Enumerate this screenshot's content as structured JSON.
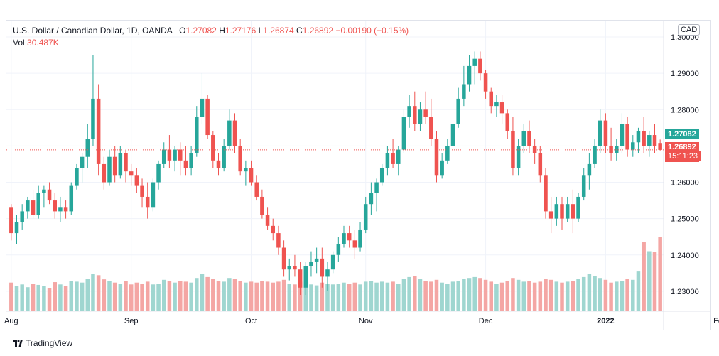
{
  "legend": {
    "symbol": "U.S. Dollar / Canadian Dollar, 1D, OANDA",
    "o_label": "O",
    "o": "1.27082",
    "h_label": "H",
    "h": "1.27176",
    "l_label": "L",
    "l": "1.26874",
    "c_label": "C",
    "c": "1.26892",
    "change": "−0.00190 (−0.15%)",
    "vol_label": "Vol",
    "vol": "30.487K"
  },
  "currency_badge": "CAD",
  "price_badges": {
    "bid": "1.27082",
    "last": "1.26892",
    "countdown": "15:11:23"
  },
  "footer": {
    "brand": "TradingView"
  },
  "colors": {
    "up": "#26a69a",
    "down": "#ef5350",
    "vol_up": "#9fd6d0",
    "vol_down": "#f4a6a4",
    "grid": "#f0f3fa",
    "axis_text": "#131722"
  },
  "chart_data": {
    "type": "candlestick",
    "title": "U.S. Dollar / Canadian Dollar, 1D, OANDA",
    "y_ticks": [
      "1.23000",
      "1.24000",
      "1.25000",
      "1.26000",
      "1.27000",
      "1.28000",
      "1.29000",
      "1.30000"
    ],
    "ylim": [
      1.2245,
      1.3045
    ],
    "x_ticks": [
      {
        "label": "Aug",
        "index": 0
      },
      {
        "label": "Sep",
        "index": 22
      },
      {
        "label": "Oct",
        "index": 44
      },
      {
        "label": "Nov",
        "index": 65
      },
      {
        "label": "Dec",
        "index": 87
      },
      {
        "label": "2022",
        "index": 109
      },
      {
        "label": "Feb",
        "index": 130
      }
    ],
    "grid": true,
    "last_price": 1.26892,
    "candles": [
      [
        1.253,
        1.254,
        1.244,
        1.246,
        62
      ],
      [
        1.246,
        1.251,
        1.243,
        1.249,
        55
      ],
      [
        1.249,
        1.254,
        1.247,
        1.252,
        58
      ],
      [
        1.252,
        1.256,
        1.25,
        1.255,
        52
      ],
      [
        1.255,
        1.258,
        1.25,
        1.251,
        60
      ],
      [
        1.251,
        1.259,
        1.25,
        1.257,
        57
      ],
      [
        1.257,
        1.259,
        1.253,
        1.258,
        54
      ],
      [
        1.258,
        1.26,
        1.254,
        1.255,
        50
      ],
      [
        1.255,
        1.257,
        1.25,
        1.252,
        63
      ],
      [
        1.252,
        1.256,
        1.249,
        1.253,
        58
      ],
      [
        1.253,
        1.255,
        1.25,
        1.252,
        55
      ],
      [
        1.252,
        1.26,
        1.251,
        1.259,
        66
      ],
      [
        1.259,
        1.265,
        1.258,
        1.264,
        64
      ],
      [
        1.264,
        1.268,
        1.26,
        1.267,
        62
      ],
      [
        1.267,
        1.276,
        1.264,
        1.272,
        70
      ],
      [
        1.272,
        1.295,
        1.27,
        1.283,
        80
      ],
      [
        1.283,
        1.287,
        1.262,
        1.265,
        78
      ],
      [
        1.265,
        1.267,
        1.258,
        1.26,
        69
      ],
      [
        1.26,
        1.269,
        1.259,
        1.267,
        66
      ],
      [
        1.267,
        1.27,
        1.26,
        1.262,
        62
      ],
      [
        1.262,
        1.27,
        1.261,
        1.268,
        60
      ],
      [
        1.268,
        1.269,
        1.26,
        1.263,
        65
      ],
      [
        1.263,
        1.265,
        1.259,
        1.262,
        58
      ],
      [
        1.262,
        1.264,
        1.257,
        1.259,
        62
      ],
      [
        1.259,
        1.261,
        1.253,
        1.256,
        60
      ],
      [
        1.256,
        1.26,
        1.25,
        1.253,
        64
      ],
      [
        1.253,
        1.261,
        1.252,
        1.26,
        58
      ],
      [
        1.26,
        1.266,
        1.258,
        1.265,
        60
      ],
      [
        1.265,
        1.271,
        1.264,
        1.269,
        68
      ],
      [
        1.269,
        1.273,
        1.264,
        1.266,
        65
      ],
      [
        1.266,
        1.27,
        1.263,
        1.269,
        62
      ],
      [
        1.269,
        1.271,
        1.262,
        1.266,
        66
      ],
      [
        1.266,
        1.27,
        1.262,
        1.264,
        64
      ],
      [
        1.264,
        1.27,
        1.262,
        1.268,
        62
      ],
      [
        1.268,
        1.281,
        1.267,
        1.278,
        72
      ],
      [
        1.278,
        1.29,
        1.276,
        1.283,
        80
      ],
      [
        1.283,
        1.284,
        1.272,
        1.273,
        74
      ],
      [
        1.273,
        1.274,
        1.264,
        1.266,
        70
      ],
      [
        1.266,
        1.268,
        1.262,
        1.264,
        66
      ],
      [
        1.264,
        1.272,
        1.263,
        1.27,
        64
      ],
      [
        1.27,
        1.28,
        1.269,
        1.277,
        72
      ],
      [
        1.277,
        1.279,
        1.268,
        1.27,
        70
      ],
      [
        1.27,
        1.272,
        1.262,
        1.263,
        66
      ],
      [
        1.263,
        1.266,
        1.259,
        1.264,
        62
      ],
      [
        1.264,
        1.266,
        1.259,
        1.26,
        64
      ],
      [
        1.26,
        1.262,
        1.255,
        1.256,
        62
      ],
      [
        1.256,
        1.258,
        1.25,
        1.251,
        66
      ],
      [
        1.251,
        1.253,
        1.247,
        1.248,
        64
      ],
      [
        1.248,
        1.25,
        1.244,
        1.246,
        62
      ],
      [
        1.246,
        1.248,
        1.24,
        1.242,
        64
      ],
      [
        1.242,
        1.244,
        1.234,
        1.236,
        68
      ],
      [
        1.236,
        1.239,
        1.233,
        1.237,
        60
      ],
      [
        1.237,
        1.24,
        1.234,
        1.236,
        58
      ],
      [
        1.236,
        1.238,
        1.229,
        1.231,
        64
      ],
      [
        1.231,
        1.238,
        1.229,
        1.237,
        60
      ],
      [
        1.237,
        1.241,
        1.234,
        1.238,
        58
      ],
      [
        1.238,
        1.242,
        1.235,
        1.239,
        56
      ],
      [
        1.239,
        1.242,
        1.231,
        1.234,
        62
      ],
      [
        1.234,
        1.238,
        1.23,
        1.236,
        60
      ],
      [
        1.236,
        1.241,
        1.235,
        1.24,
        58
      ],
      [
        1.24,
        1.245,
        1.238,
        1.243,
        60
      ],
      [
        1.243,
        1.248,
        1.242,
        1.246,
        62
      ],
      [
        1.246,
        1.248,
        1.242,
        1.244,
        60
      ],
      [
        1.244,
        1.247,
        1.239,
        1.242,
        62
      ],
      [
        1.242,
        1.249,
        1.241,
        1.247,
        58
      ],
      [
        1.247,
        1.256,
        1.246,
        1.254,
        64
      ],
      [
        1.254,
        1.26,
        1.251,
        1.257,
        66
      ],
      [
        1.257,
        1.261,
        1.252,
        1.26,
        62
      ],
      [
        1.26,
        1.265,
        1.259,
        1.264,
        64
      ],
      [
        1.264,
        1.27,
        1.262,
        1.268,
        62
      ],
      [
        1.268,
        1.272,
        1.264,
        1.265,
        64
      ],
      [
        1.265,
        1.27,
        1.262,
        1.269,
        60
      ],
      [
        1.269,
        1.28,
        1.268,
        1.278,
        70
      ],
      [
        1.278,
        1.284,
        1.275,
        1.281,
        74
      ],
      [
        1.281,
        1.285,
        1.274,
        1.276,
        76
      ],
      [
        1.276,
        1.282,
        1.274,
        1.28,
        70
      ],
      [
        1.28,
        1.285,
        1.276,
        1.278,
        66
      ],
      [
        1.278,
        1.283,
        1.27,
        1.272,
        64
      ],
      [
        1.272,
        1.274,
        1.26,
        1.262,
        68
      ],
      [
        1.262,
        1.268,
        1.261,
        1.266,
        62
      ],
      [
        1.266,
        1.272,
        1.265,
        1.27,
        60
      ],
      [
        1.27,
        1.279,
        1.269,
        1.276,
        64
      ],
      [
        1.276,
        1.286,
        1.275,
        1.283,
        66
      ],
      [
        1.283,
        1.292,
        1.281,
        1.287,
        70
      ],
      [
        1.287,
        1.295,
        1.285,
        1.292,
        72
      ],
      [
        1.292,
        1.296,
        1.287,
        1.294,
        74
      ],
      [
        1.294,
        1.296,
        1.288,
        1.29,
        72
      ],
      [
        1.29,
        1.291,
        1.283,
        1.285,
        68
      ],
      [
        1.285,
        1.286,
        1.279,
        1.281,
        64
      ],
      [
        1.281,
        1.284,
        1.278,
        1.282,
        60
      ],
      [
        1.282,
        1.284,
        1.276,
        1.279,
        62
      ],
      [
        1.279,
        1.28,
        1.272,
        1.274,
        66
      ],
      [
        1.274,
        1.278,
        1.262,
        1.264,
        72
      ],
      [
        1.264,
        1.272,
        1.262,
        1.27,
        68
      ],
      [
        1.27,
        1.276,
        1.268,
        1.274,
        64
      ],
      [
        1.274,
        1.277,
        1.268,
        1.27,
        66
      ],
      [
        1.27,
        1.272,
        1.265,
        1.268,
        62
      ],
      [
        1.268,
        1.27,
        1.26,
        1.262,
        64
      ],
      [
        1.262,
        1.264,
        1.25,
        1.252,
        70
      ],
      [
        1.252,
        1.256,
        1.246,
        1.25,
        68
      ],
      [
        1.25,
        1.256,
        1.248,
        1.254,
        64
      ],
      [
        1.254,
        1.256,
        1.247,
        1.25,
        62
      ],
      [
        1.25,
        1.256,
        1.249,
        1.254,
        64
      ],
      [
        1.254,
        1.258,
        1.246,
        1.25,
        66
      ],
      [
        1.25,
        1.257,
        1.249,
        1.256,
        70
      ],
      [
        1.256,
        1.264,
        1.255,
        1.262,
        74
      ],
      [
        1.262,
        1.268,
        1.258,
        1.265,
        80
      ],
      [
        1.265,
        1.272,
        1.264,
        1.27,
        76
      ],
      [
        1.27,
        1.28,
        1.268,
        1.277,
        72
      ],
      [
        1.277,
        1.279,
        1.268,
        1.27,
        68
      ],
      [
        1.27,
        1.275,
        1.266,
        1.268,
        62
      ],
      [
        1.268,
        1.272,
        1.266,
        1.27,
        64
      ],
      [
        1.27,
        1.279,
        1.268,
        1.276,
        66
      ],
      [
        1.276,
        1.278,
        1.267,
        1.269,
        70
      ],
      [
        1.269,
        1.273,
        1.267,
        1.271,
        68
      ],
      [
        1.271,
        1.275,
        1.268,
        1.274,
        86
      ],
      [
        1.274,
        1.278,
        1.268,
        1.27,
        150
      ],
      [
        1.27,
        1.274,
        1.267,
        1.273,
        130
      ],
      [
        1.273,
        1.276,
        1.268,
        1.27,
        128
      ],
      [
        1.27082,
        1.27176,
        1.26874,
        1.26892,
        160
      ]
    ]
  }
}
